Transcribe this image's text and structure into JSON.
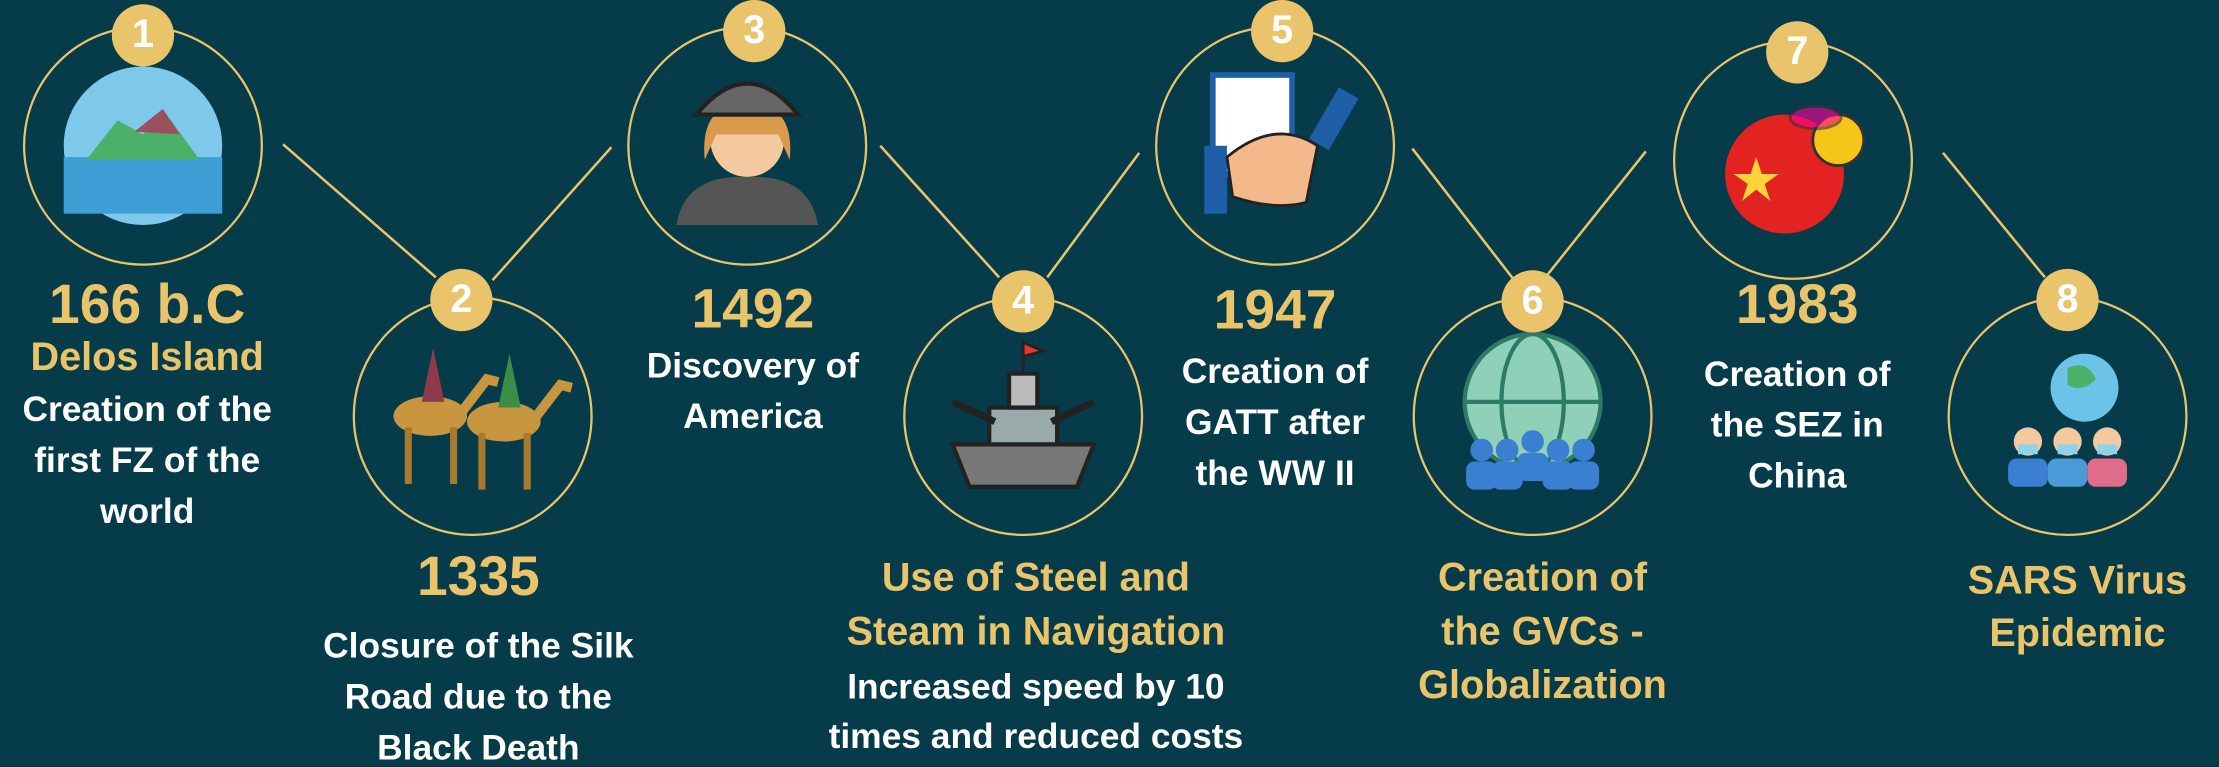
{
  "events": [
    {
      "number": "1",
      "year": "166 b.C",
      "title": [
        "Delos Island"
      ],
      "description": [
        "Creation of the",
        "first FZ of the",
        "world"
      ]
    },
    {
      "number": "2",
      "year": "1335",
      "description": [
        "Closure of the Silk",
        "Road due to the",
        "Black Death"
      ]
    },
    {
      "number": "3",
      "year": "1492",
      "description": [
        "Discovery of",
        "America"
      ]
    },
    {
      "number": "4",
      "title": [
        "Use of Steel and",
        "Steam in Navigation"
      ],
      "description": [
        "Increased speed by 10",
        "times and reduced costs"
      ]
    },
    {
      "number": "5",
      "year": "1947",
      "description": [
        "Creation of",
        "GATT after",
        "the WW II"
      ]
    },
    {
      "number": "6",
      "title": [
        "Creation of",
        "the GVCs -",
        "Globalization"
      ]
    },
    {
      "number": "7",
      "year": "1983",
      "description": [
        "Creation of",
        "the SEZ in",
        "China"
      ]
    },
    {
      "number": "8",
      "title": [
        "SARS Virus",
        "Epidemic"
      ]
    }
  ]
}
